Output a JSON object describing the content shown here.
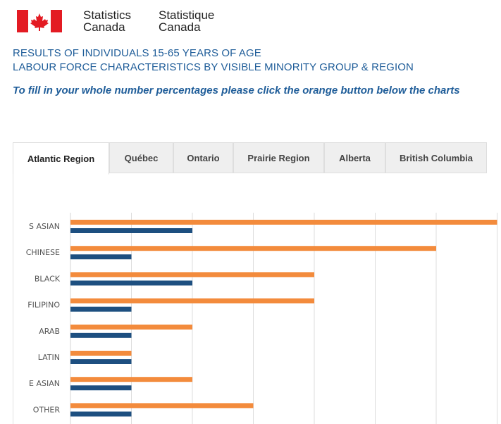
{
  "header": {
    "org_en_line1": "Statistics",
    "org_en_line2": "Canada",
    "org_fr_line1": "Statistique",
    "org_fr_line2": "Canada",
    "flag_icon": "canada-flag-icon",
    "flag_red": "#e31b23"
  },
  "titles": {
    "line1": "RESULTS OF INDIVIDUALS 15-65 YEARS OF AGE",
    "line2": "LABOUR FORCE CHARACTERISTICS BY VISIBLE MINORITY GROUP & REGION",
    "instruction": "To fill in your whole number percentages please click the orange button below the charts"
  },
  "tabs": [
    {
      "label": "Atlantic Region",
      "active": true
    },
    {
      "label": "Québec",
      "active": false
    },
    {
      "label": "Ontario",
      "active": false
    },
    {
      "label": "Prairie Region",
      "active": false
    },
    {
      "label": "Alberta",
      "active": false
    },
    {
      "label": "British Columbia",
      "active": false
    }
  ],
  "chart_data": {
    "type": "bar",
    "orientation": "horizontal",
    "categories": [
      "S ASIAN",
      "CHINESE",
      "BLACK",
      "FILIPINO",
      "ARAB",
      "LATIN",
      "E ASIAN",
      "OTHER"
    ],
    "series": [
      {
        "color": "#f38b3c",
        "values": [
          7,
          6,
          4,
          4,
          2,
          1,
          2,
          3
        ]
      },
      {
        "color": "#1d4f80",
        "values": [
          2,
          1,
          2,
          1,
          1,
          1,
          1,
          1
        ]
      }
    ],
    "xlim": [
      0,
      7
    ],
    "grid": true,
    "colors": {
      "series1": "#f38b3c",
      "series2": "#1d4f80",
      "grid": "#dddddd"
    }
  }
}
